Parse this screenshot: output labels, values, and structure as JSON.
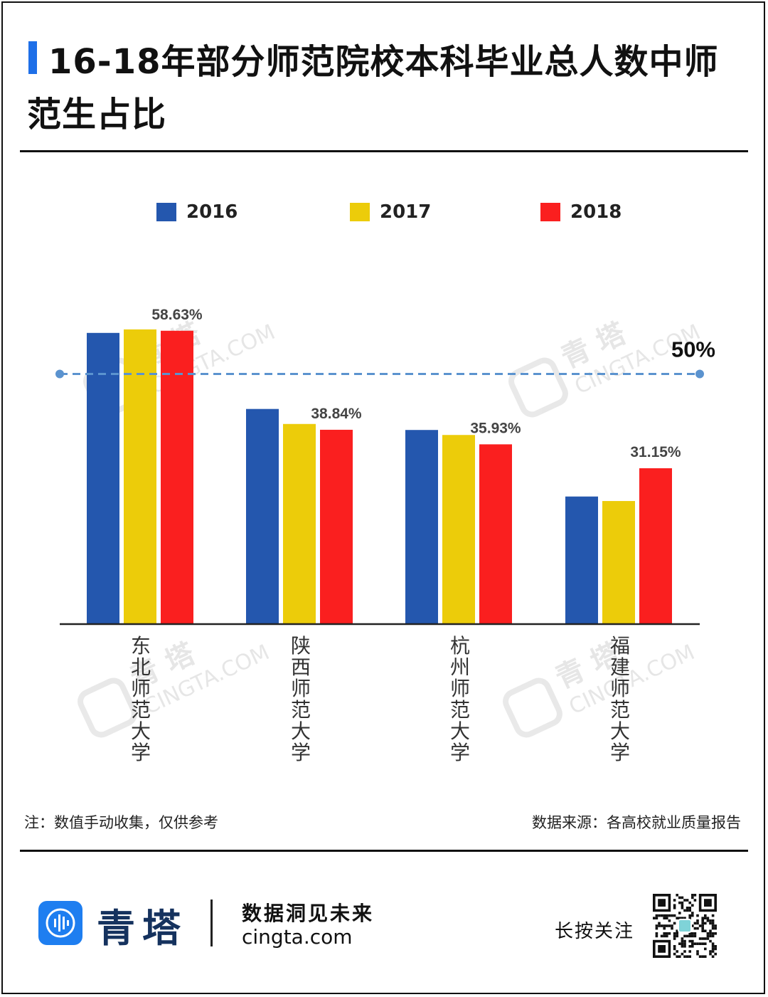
{
  "header": {
    "title": "16-18年部分师范院校本科毕业总人数中师范生占比"
  },
  "chart_data": {
    "type": "bar",
    "title": "16-18年部分师范院校本科毕业总人数中师范生占比",
    "categories": [
      "东北师范大学",
      "陕西师范大学",
      "杭州师范大学",
      "福建师范大学"
    ],
    "series": [
      {
        "name": "2016",
        "color": "#2457ae",
        "values": [
          58.2,
          43.0,
          38.8,
          25.5
        ]
      },
      {
        "name": "2017",
        "color": "#eccc0a",
        "values": [
          58.9,
          40.0,
          37.8,
          24.6
        ]
      },
      {
        "name": "2018",
        "color": "#fa1f1f",
        "values": [
          58.63,
          38.84,
          35.93,
          31.15
        ]
      }
    ],
    "data_labels": [
      "58.63%",
      "38.84%",
      "35.93%",
      "31.15%"
    ],
    "reference_line": {
      "value": 50,
      "label": "50%",
      "style": "dashed",
      "color": "#5b93cf"
    },
    "ylim": [
      0,
      65
    ],
    "xlabel": "",
    "ylabel": "",
    "grid": false,
    "legend": "top-center"
  },
  "watermark": {
    "text_cn": "青 塔",
    "text_en": "CINGTA.COM"
  },
  "notes": {
    "left": "注：数值手动收集，仅供参考",
    "right": "数据来源：各高校就业质量报告"
  },
  "footer": {
    "brand_name": "青塔",
    "slogan": "数据洞见未来",
    "url": "cingta.com",
    "follow_text": "长按关注",
    "logo_icon": "sound-wave-icon",
    "qr_icon": "qr-code-icon",
    "brand_color": "#1e7ef0"
  }
}
